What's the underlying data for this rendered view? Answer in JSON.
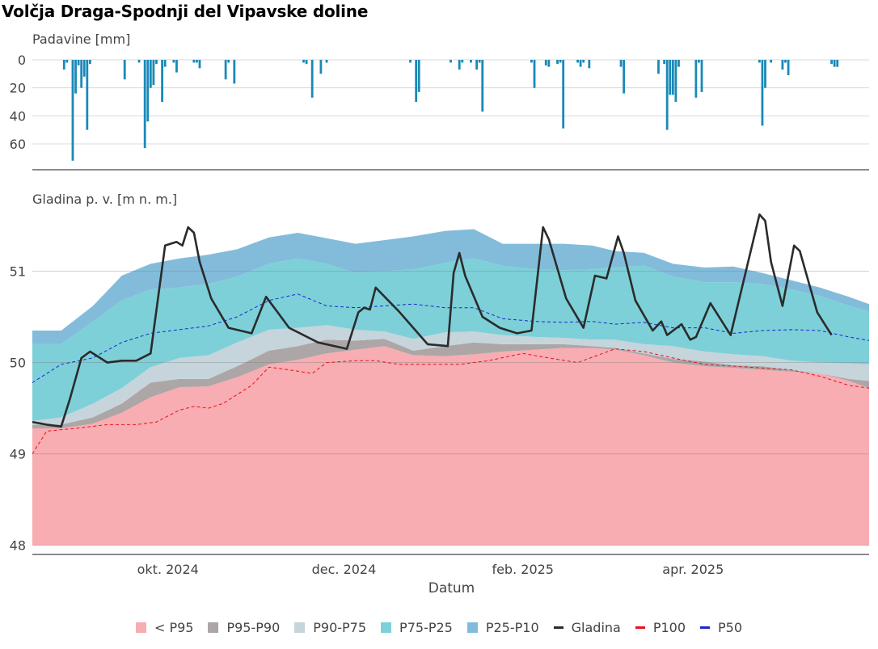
{
  "title": "Volčja Draga-Spodnji del Vipavske doline",
  "chart_data": [
    {
      "type": "bar",
      "name": "precipitation",
      "ylabel": "Padavine [mm]",
      "ylim": [
        0,
        75
      ],
      "yticks": [
        0,
        20,
        40,
        60
      ],
      "y_reversed": true,
      "grid": true,
      "x_range": [
        "2024-08-15",
        "2025-06-01"
      ],
      "color": "#1a89b8",
      "dates": [
        "2024-08-26",
        "2024-08-27",
        "2024-08-29",
        "2024-08-30",
        "2024-08-31",
        "2024-09-01",
        "2024-09-02",
        "2024-09-03",
        "2024-09-04",
        "2024-09-16",
        "2024-09-21",
        "2024-09-23",
        "2024-09-24",
        "2024-09-25",
        "2024-09-26",
        "2024-09-27",
        "2024-09-29",
        "2024-09-30",
        "2024-10-03",
        "2024-10-04",
        "2024-10-10",
        "2024-10-11",
        "2024-10-12",
        "2024-10-21",
        "2024-10-22",
        "2024-10-24",
        "2024-11-17",
        "2024-11-18",
        "2024-11-20",
        "2024-11-23",
        "2024-11-25",
        "2024-12-24",
        "2024-12-26",
        "2024-12-27",
        "2025-01-07",
        "2025-01-10",
        "2025-01-11",
        "2025-01-14",
        "2025-01-16",
        "2025-01-17",
        "2025-01-18",
        "2025-02-04",
        "2025-02-05",
        "2025-02-09",
        "2025-02-10",
        "2025-02-13",
        "2025-02-14",
        "2025-02-15",
        "2025-02-20",
        "2025-02-21",
        "2025-02-22",
        "2025-02-24",
        "2025-03-07",
        "2025-03-08",
        "2025-03-20",
        "2025-03-22",
        "2025-03-23",
        "2025-03-24",
        "2025-03-25",
        "2025-03-26",
        "2025-03-27",
        "2025-04-02",
        "2025-04-03",
        "2025-04-04",
        "2025-04-24",
        "2025-04-25",
        "2025-04-26",
        "2025-04-28",
        "2025-05-02",
        "2025-05-03",
        "2025-05-04",
        "2025-05-19",
        "2025-05-20",
        "2025-05-21"
      ],
      "values": [
        7,
        2,
        72,
        24,
        4,
        20,
        12,
        50,
        3,
        14,
        2,
        63,
        44,
        20,
        18,
        3,
        30,
        5,
        2,
        9,
        2,
        2,
        6,
        14,
        2,
        17,
        2,
        3,
        27,
        10,
        2,
        2,
        30,
        23,
        2,
        7,
        2,
        2,
        7,
        2,
        37,
        2,
        20,
        4,
        5,
        3,
        2,
        49,
        2,
        5,
        2,
        6,
        5,
        24,
        10,
        3,
        50,
        25,
        25,
        30,
        5,
        27,
        2,
        23,
        2,
        47,
        20,
        2,
        7,
        2,
        11,
        3,
        5,
        5
      ]
    },
    {
      "type": "area",
      "name": "groundwater-level",
      "ylabel": "Gladina p. v. [m n. m.]",
      "xlabel": "Datum",
      "ylim": [
        47.9,
        51.65
      ],
      "yticks": [
        48,
        49,
        50,
        51
      ],
      "x_range": [
        "2024-08-15",
        "2025-06-01"
      ],
      "xticks": [
        {
          "date": "2024-10-01",
          "label": "okt. 2024"
        },
        {
          "date": "2024-12-01",
          "label": "dec. 2024"
        },
        {
          "date": "2025-02-01",
          "label": "feb. 2025"
        },
        {
          "date": "2025-04-01",
          "label": "apr. 2025"
        }
      ],
      "grid": true,
      "band_dates": [
        "2024-08-15",
        "2024-08-25",
        "2024-09-05",
        "2024-09-15",
        "2024-09-25",
        "2024-10-05",
        "2024-10-15",
        "2024-10-25",
        "2024-11-05",
        "2024-11-15",
        "2024-11-25",
        "2024-12-05",
        "2024-12-15",
        "2024-12-25",
        "2025-01-05",
        "2025-01-15",
        "2025-01-25",
        "2025-02-05",
        "2025-02-15",
        "2025-02-25",
        "2025-03-05",
        "2025-03-15",
        "2025-03-25",
        "2025-04-05",
        "2025-04-15",
        "2025-04-25",
        "2025-05-05",
        "2025-05-15",
        "2025-05-25",
        "2025-06-01"
      ],
      "bands": [
        {
          "name": "< P95",
          "color": "#f7adb1",
          "upper": [
            49.28,
            49.28,
            49.33,
            49.45,
            49.62,
            49.73,
            49.74,
            49.84,
            49.98,
            50.03,
            50.1,
            50.14,
            50.18,
            50.08,
            50.07,
            50.09,
            50.12,
            50.14,
            50.16,
            50.16,
            50.14,
            50.08,
            50.0,
            49.96,
            49.94,
            49.92,
            49.9,
            49.88,
            49.8,
            49.72
          ]
        },
        {
          "name": "P95-P90",
          "color": "#ada6a6",
          "upper": [
            49.32,
            49.32,
            49.4,
            49.55,
            49.78,
            49.82,
            49.82,
            49.96,
            50.13,
            50.18,
            50.25,
            50.24,
            50.26,
            50.13,
            50.18,
            50.22,
            50.2,
            50.2,
            50.2,
            50.18,
            50.16,
            50.1,
            50.04,
            50.01,
            49.97,
            49.96,
            49.92,
            49.88,
            49.82,
            49.8
          ]
        },
        {
          "name": "P90-P75",
          "color": "#c6d4dc",
          "upper": [
            49.36,
            49.4,
            49.55,
            49.72,
            49.95,
            50.05,
            50.08,
            50.22,
            50.36,
            50.38,
            50.41,
            50.36,
            50.34,
            50.26,
            50.33,
            50.34,
            50.3,
            50.28,
            50.27,
            50.25,
            50.25,
            50.2,
            50.18,
            50.12,
            50.09,
            50.07,
            50.02,
            50.0,
            49.99,
            49.98
          ]
        },
        {
          "name": "P75-P25",
          "color": "#7dd0d8",
          "upper": [
            50.2,
            50.2,
            50.45,
            50.68,
            50.8,
            50.82,
            50.86,
            50.94,
            51.08,
            51.14,
            51.08,
            50.98,
            51.0,
            51.02,
            51.09,
            51.14,
            51.06,
            51.02,
            51.01,
            51.02,
            51.04,
            51.06,
            50.94,
            50.88,
            50.88,
            50.86,
            50.8,
            50.73,
            50.62,
            50.56
          ]
        },
        {
          "name": "P25-P10",
          "color": "#83bcdb",
          "upper": [
            50.35,
            50.35,
            50.62,
            50.95,
            51.08,
            51.14,
            51.18,
            51.24,
            51.37,
            51.42,
            51.36,
            51.3,
            51.34,
            51.38,
            51.44,
            51.46,
            51.3,
            51.3,
            51.3,
            51.28,
            51.22,
            51.2,
            51.08,
            51.04,
            51.05,
            50.98,
            50.9,
            50.82,
            50.72,
            50.64
          ]
        }
      ],
      "band_floor": 48,
      "lines": [
        {
          "name": "Gladina",
          "color": "#2b2b2b",
          "dash": "solid",
          "dates": [
            "2024-08-15",
            "2024-08-20",
            "2024-08-25",
            "2024-08-28",
            "2024-09-01",
            "2024-09-04",
            "2024-09-06",
            "2024-09-10",
            "2024-09-15",
            "2024-09-20",
            "2024-09-25",
            "2024-09-30",
            "2024-10-04",
            "2024-10-06",
            "2024-10-08",
            "2024-10-10",
            "2024-10-12",
            "2024-10-16",
            "2024-10-22",
            "2024-10-30",
            "2024-11-04",
            "2024-11-08",
            "2024-11-12",
            "2024-11-22",
            "2024-12-02",
            "2024-12-06",
            "2024-12-08",
            "2024-12-10",
            "2024-12-12",
            "2024-12-20",
            "2024-12-30",
            "2025-01-06",
            "2025-01-08",
            "2025-01-10",
            "2025-01-12",
            "2025-01-18",
            "2025-01-24",
            "2025-01-30",
            "2025-02-04",
            "2025-02-08",
            "2025-02-10",
            "2025-02-16",
            "2025-02-22",
            "2025-02-26",
            "2025-03-02",
            "2025-03-06",
            "2025-03-08",
            "2025-03-12",
            "2025-03-18",
            "2025-03-21",
            "2025-03-23",
            "2025-03-28",
            "2025-03-31",
            "2025-04-02",
            "2025-04-07",
            "2025-04-14",
            "2025-04-24",
            "2025-04-26",
            "2025-04-28",
            "2025-05-02",
            "2025-05-06",
            "2025-05-08",
            "2025-05-14",
            "2025-05-19"
          ],
          "values": [
            49.35,
            49.32,
            49.3,
            49.6,
            50.05,
            50.12,
            50.08,
            50.0,
            50.02,
            50.02,
            50.1,
            51.28,
            51.32,
            51.28,
            51.48,
            51.42,
            51.1,
            50.7,
            50.38,
            50.32,
            50.72,
            50.55,
            50.38,
            50.22,
            50.15,
            50.55,
            50.6,
            50.58,
            50.82,
            50.56,
            50.2,
            50.18,
            50.98,
            51.2,
            50.95,
            50.5,
            50.38,
            50.32,
            50.35,
            51.48,
            51.35,
            50.7,
            50.38,
            50.95,
            50.92,
            51.38,
            51.2,
            50.68,
            50.35,
            50.45,
            50.3,
            50.42,
            50.25,
            50.28,
            50.65,
            50.3,
            51.62,
            51.55,
            51.1,
            50.62,
            51.28,
            51.22,
            50.55,
            50.3
          ]
        },
        {
          "name": "P100",
          "color": "#e8121b",
          "dash": "dashed",
          "dates": [
            "2024-08-15",
            "2024-08-20",
            "2024-08-30",
            "2024-09-10",
            "2024-09-20",
            "2024-09-27",
            "2024-10-05",
            "2024-10-10",
            "2024-10-15",
            "2024-10-20",
            "2024-10-30",
            "2024-11-05",
            "2024-11-12",
            "2024-11-20",
            "2024-11-25",
            "2024-12-05",
            "2024-12-12",
            "2024-12-20",
            "2024-12-30",
            "2025-01-10",
            "2025-01-20",
            "2025-02-01",
            "2025-02-10",
            "2025-02-20",
            "2025-03-05",
            "2025-03-15",
            "2025-03-25",
            "2025-04-05",
            "2025-04-20",
            "2025-05-05",
            "2025-05-15",
            "2025-05-25",
            "2025-06-01"
          ],
          "values": [
            49.0,
            49.25,
            49.28,
            49.32,
            49.32,
            49.35,
            49.48,
            49.52,
            49.5,
            49.55,
            49.75,
            49.95,
            49.92,
            49.88,
            50.0,
            50.02,
            50.02,
            49.98,
            49.98,
            49.98,
            50.02,
            50.1,
            50.05,
            50.0,
            50.15,
            50.12,
            50.05,
            49.98,
            49.95,
            49.92,
            49.85,
            49.75,
            49.72
          ]
        },
        {
          "name": "P50",
          "color": "#1c27c9",
          "dash": "dashed",
          "dates": [
            "2024-08-15",
            "2024-08-25",
            "2024-09-05",
            "2024-09-15",
            "2024-09-25",
            "2024-10-05",
            "2024-10-15",
            "2024-10-25",
            "2024-11-05",
            "2024-11-15",
            "2024-11-25",
            "2024-12-05",
            "2024-12-15",
            "2024-12-25",
            "2025-01-05",
            "2025-01-15",
            "2025-01-25",
            "2025-02-05",
            "2025-02-15",
            "2025-02-25",
            "2025-03-05",
            "2025-03-15",
            "2025-03-25",
            "2025-04-05",
            "2025-04-15",
            "2025-04-25",
            "2025-05-05",
            "2025-05-15",
            "2025-05-25",
            "2025-06-01"
          ],
          "values": [
            49.78,
            49.98,
            50.05,
            50.22,
            50.32,
            50.36,
            50.4,
            50.5,
            50.68,
            50.75,
            50.62,
            50.6,
            50.62,
            50.64,
            50.6,
            50.6,
            50.48,
            50.45,
            50.44,
            50.45,
            50.42,
            50.44,
            50.38,
            50.38,
            50.32,
            50.35,
            50.36,
            50.35,
            50.28,
            50.24
          ]
        }
      ]
    }
  ],
  "legend": {
    "position": "bottom",
    "items": [
      {
        "label": "< P95",
        "type": "box",
        "color": "#f7adb1"
      },
      {
        "label": "P95-P90",
        "type": "box",
        "color": "#ada6a6"
      },
      {
        "label": "P90-P75",
        "type": "box",
        "color": "#c6d4dc"
      },
      {
        "label": "P75-P25",
        "type": "box",
        "color": "#7dd0d8"
      },
      {
        "label": "P25-P10",
        "type": "box",
        "color": "#83bcdb"
      },
      {
        "label": "Gladina",
        "type": "line",
        "color": "#2b2b2b"
      },
      {
        "label": "P100",
        "type": "line",
        "color": "#e8121b"
      },
      {
        "label": "P50",
        "type": "line",
        "color": "#1c27c9"
      }
    ]
  }
}
